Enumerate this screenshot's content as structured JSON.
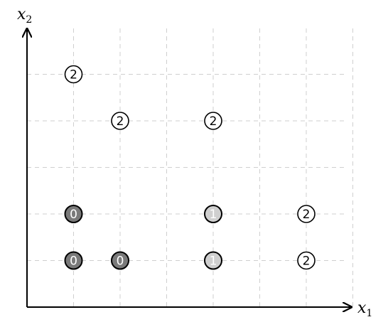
{
  "axes": {
    "x_label": "x",
    "x_sub": "1",
    "y_label": "x",
    "y_sub": "2"
  },
  "grid": {
    "x_ticks": [
      1,
      2,
      3,
      4,
      5,
      6,
      7
    ],
    "y_ticks": [
      1,
      2,
      3,
      4,
      5
    ]
  },
  "colors": {
    "class_0_fill": "#7a7a7a",
    "class_1_fill": "#cfcfcf",
    "class_2_fill": "#ffffff",
    "outline": "#000000"
  },
  "chart_data": {
    "type": "scatter",
    "points": [
      {
        "x": 1,
        "y": 5,
        "label": "2"
      },
      {
        "x": 2,
        "y": 4,
        "label": "2"
      },
      {
        "x": 4,
        "y": 4,
        "label": "2"
      },
      {
        "x": 1,
        "y": 2,
        "label": "0"
      },
      {
        "x": 4,
        "y": 2,
        "label": "1"
      },
      {
        "x": 6,
        "y": 2,
        "label": "2"
      },
      {
        "x": 1,
        "y": 1,
        "label": "0"
      },
      {
        "x": 2,
        "y": 1,
        "label": "0"
      },
      {
        "x": 4,
        "y": 1,
        "label": "1"
      },
      {
        "x": 6,
        "y": 1,
        "label": "2"
      }
    ]
  }
}
